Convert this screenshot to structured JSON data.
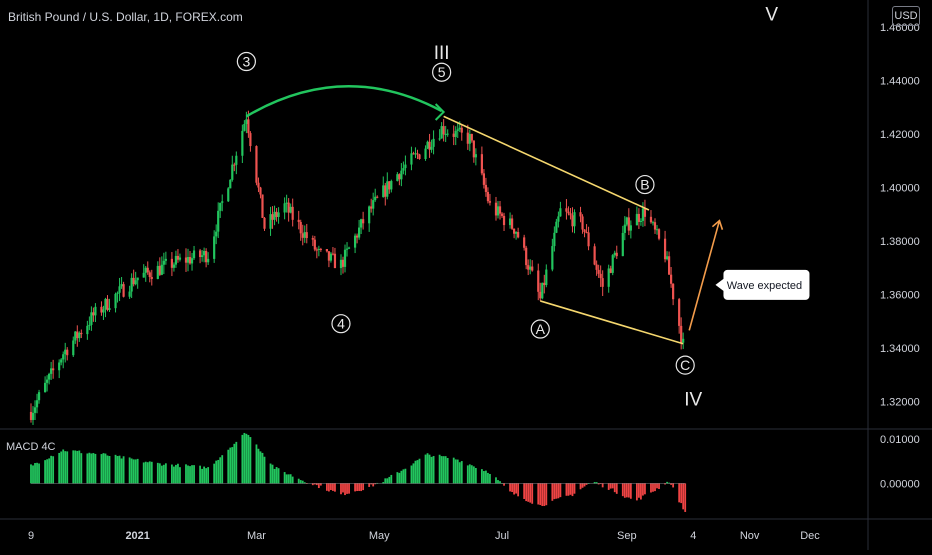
{
  "header": {
    "symbol_title": "British Pound / U.S. Dollar, 1D, FOREX.com",
    "currency": "USD"
  },
  "colors": {
    "up": "#26a69a",
    "up_bright": "#22c55e",
    "down": "#ef5350",
    "arc": "#22c55e",
    "channel": "#f5d76e",
    "arrow": "#f39c4b",
    "macd_pos": "#22c55e",
    "macd_neg": "#ef4444",
    "axis_text": "#d1d4dc",
    "grid": "#1e222d"
  },
  "chart_data": {
    "type": "candlestick",
    "ylim": [
      1.31,
      1.47
    ],
    "y_ticks": [
      "1.46000",
      "1.44000",
      "1.42000",
      "1.40000",
      "1.38000",
      "1.36000",
      "1.34000",
      "1.32000"
    ],
    "y_tick_values": [
      1.46,
      1.44,
      1.42,
      1.4,
      1.38,
      1.36,
      1.34,
      1.32
    ],
    "x_ticks": [
      "9",
      "2021",
      "Mar",
      "May",
      "Jul",
      "Sep",
      "4",
      "Nov",
      "Dec"
    ],
    "x_tick_dates": [
      "2020-11-09",
      "2021-01-01",
      "2021-03-01",
      "2021-05-01",
      "2021-07-01",
      "2021-09-01",
      "2021-10-04",
      "2021-11-01",
      "2021-12-01"
    ],
    "price_path": [
      [
        "2020-11-09",
        1.316
      ],
      [
        "2020-11-25",
        1.338
      ],
      [
        "2020-12-10",
        1.352
      ],
      [
        "2020-12-31",
        1.366
      ],
      [
        "2021-01-20",
        1.372
      ],
      [
        "2021-02-05",
        1.375
      ],
      [
        "2021-02-24",
        1.427
      ],
      [
        "2021-03-05",
        1.385
      ],
      [
        "2021-03-15",
        1.393
      ],
      [
        "2021-04-01",
        1.375
      ],
      [
        "2021-04-12",
        1.371
      ],
      [
        "2021-04-25",
        1.39
      ],
      [
        "2021-05-10",
        1.405
      ],
      [
        "2021-05-20",
        1.412
      ],
      [
        "2021-06-01",
        1.422
      ],
      [
        "2021-06-15",
        1.418
      ],
      [
        "2021-06-25",
        1.393
      ],
      [
        "2021-07-08",
        1.384
      ],
      [
        "2021-07-20",
        1.358
      ],
      [
        "2021-07-30",
        1.391
      ],
      [
        "2021-08-10",
        1.386
      ],
      [
        "2021-08-20",
        1.363
      ],
      [
        "2021-09-01",
        1.386
      ],
      [
        "2021-09-10",
        1.391
      ],
      [
        "2021-09-20",
        1.375
      ],
      [
        "2021-09-29",
        1.341
      ]
    ],
    "waves": [
      {
        "label": "3",
        "date": "2021-02-24",
        "price": 1.447,
        "circled": true
      },
      {
        "label": "5",
        "date": "2021-06-01",
        "price": 1.443,
        "circled": true
      },
      {
        "label": "III",
        "date": "2021-06-01",
        "price": 1.4505,
        "circled": false
      },
      {
        "label": "4",
        "date": "2021-04-12",
        "price": 1.349,
        "circled": true
      },
      {
        "label": "A",
        "date": "2021-07-20",
        "price": 1.347,
        "circled": true
      },
      {
        "label": "B",
        "date": "2021-09-10",
        "price": 1.401,
        "circled": true
      },
      {
        "label": "C",
        "date": "2021-09-30",
        "price": 1.3335,
        "circled": true
      },
      {
        "label": "IV",
        "date": "2021-10-04",
        "price": 1.321,
        "circled": false
      },
      {
        "label": "V",
        "date": "2021-11-12",
        "price": 1.465,
        "circled": false
      }
    ],
    "arc": {
      "from": [
        "2021-02-24",
        1.4265
      ],
      "to": [
        "2021-06-01",
        1.4285
      ]
    },
    "channel": {
      "upper": [
        [
          "2021-06-02",
          1.4265
        ],
        [
          "2021-09-12",
          1.3915
        ]
      ],
      "lower": [
        [
          "2021-07-20",
          1.3575
        ],
        [
          "2021-09-29",
          1.3415
        ]
      ]
    },
    "projection": {
      "from": [
        "2021-10-02",
        1.3465
      ],
      "to": [
        "2021-10-17",
        1.3875
      ]
    },
    "callout": {
      "text": "Wave expected",
      "date": "2021-10-21",
      "price": 1.3635
    },
    "macd": {
      "label": "MACD 4C",
      "ylim": [
        -0.008,
        0.012
      ],
      "y_ticks": [
        "0.01000",
        "0.00000"
      ],
      "y_tick_values": [
        0.01,
        0.0
      ],
      "path": [
        [
          "2020-11-09",
          0.004
        ],
        [
          "2020-11-25",
          0.0075
        ],
        [
          "2020-12-15",
          0.0065
        ],
        [
          "2021-01-10",
          0.0045
        ],
        [
          "2021-02-05",
          0.0035
        ],
        [
          "2021-02-24",
          0.0115
        ],
        [
          "2021-03-10",
          0.0035
        ],
        [
          "2021-03-25",
          0.0005
        ],
        [
          "2021-04-12",
          -0.0025
        ],
        [
          "2021-04-25",
          -0.001
        ],
        [
          "2021-05-05",
          0.001
        ],
        [
          "2021-05-25",
          0.0065
        ],
        [
          "2021-06-08",
          0.0055
        ],
        [
          "2021-06-25",
          0.0025
        ],
        [
          "2021-07-05",
          -0.002
        ],
        [
          "2021-07-20",
          -0.005
        ],
        [
          "2021-08-05",
          -0.0025
        ],
        [
          "2021-08-15",
          0.0005
        ],
        [
          "2021-08-25",
          -0.0015
        ],
        [
          "2021-09-05",
          -0.004
        ],
        [
          "2021-09-15",
          -0.0015
        ],
        [
          "2021-09-22",
          0.0005
        ],
        [
          "2021-09-30",
          -0.0065
        ]
      ]
    }
  }
}
